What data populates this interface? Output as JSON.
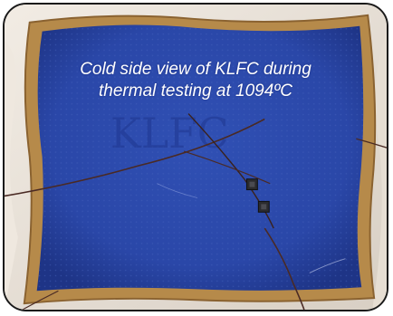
{
  "caption": {
    "line1": "Cold side view of KLFC during",
    "line2": "thermal testing at 1094ºC"
  },
  "background_text": "KLFC",
  "colors": {
    "panel_blue": "#2a47a8",
    "frame_border": "#1a1a1a",
    "insulation": "#ece6de",
    "tape_gold": "#b68a4a",
    "caption_text": "#ffffff"
  }
}
